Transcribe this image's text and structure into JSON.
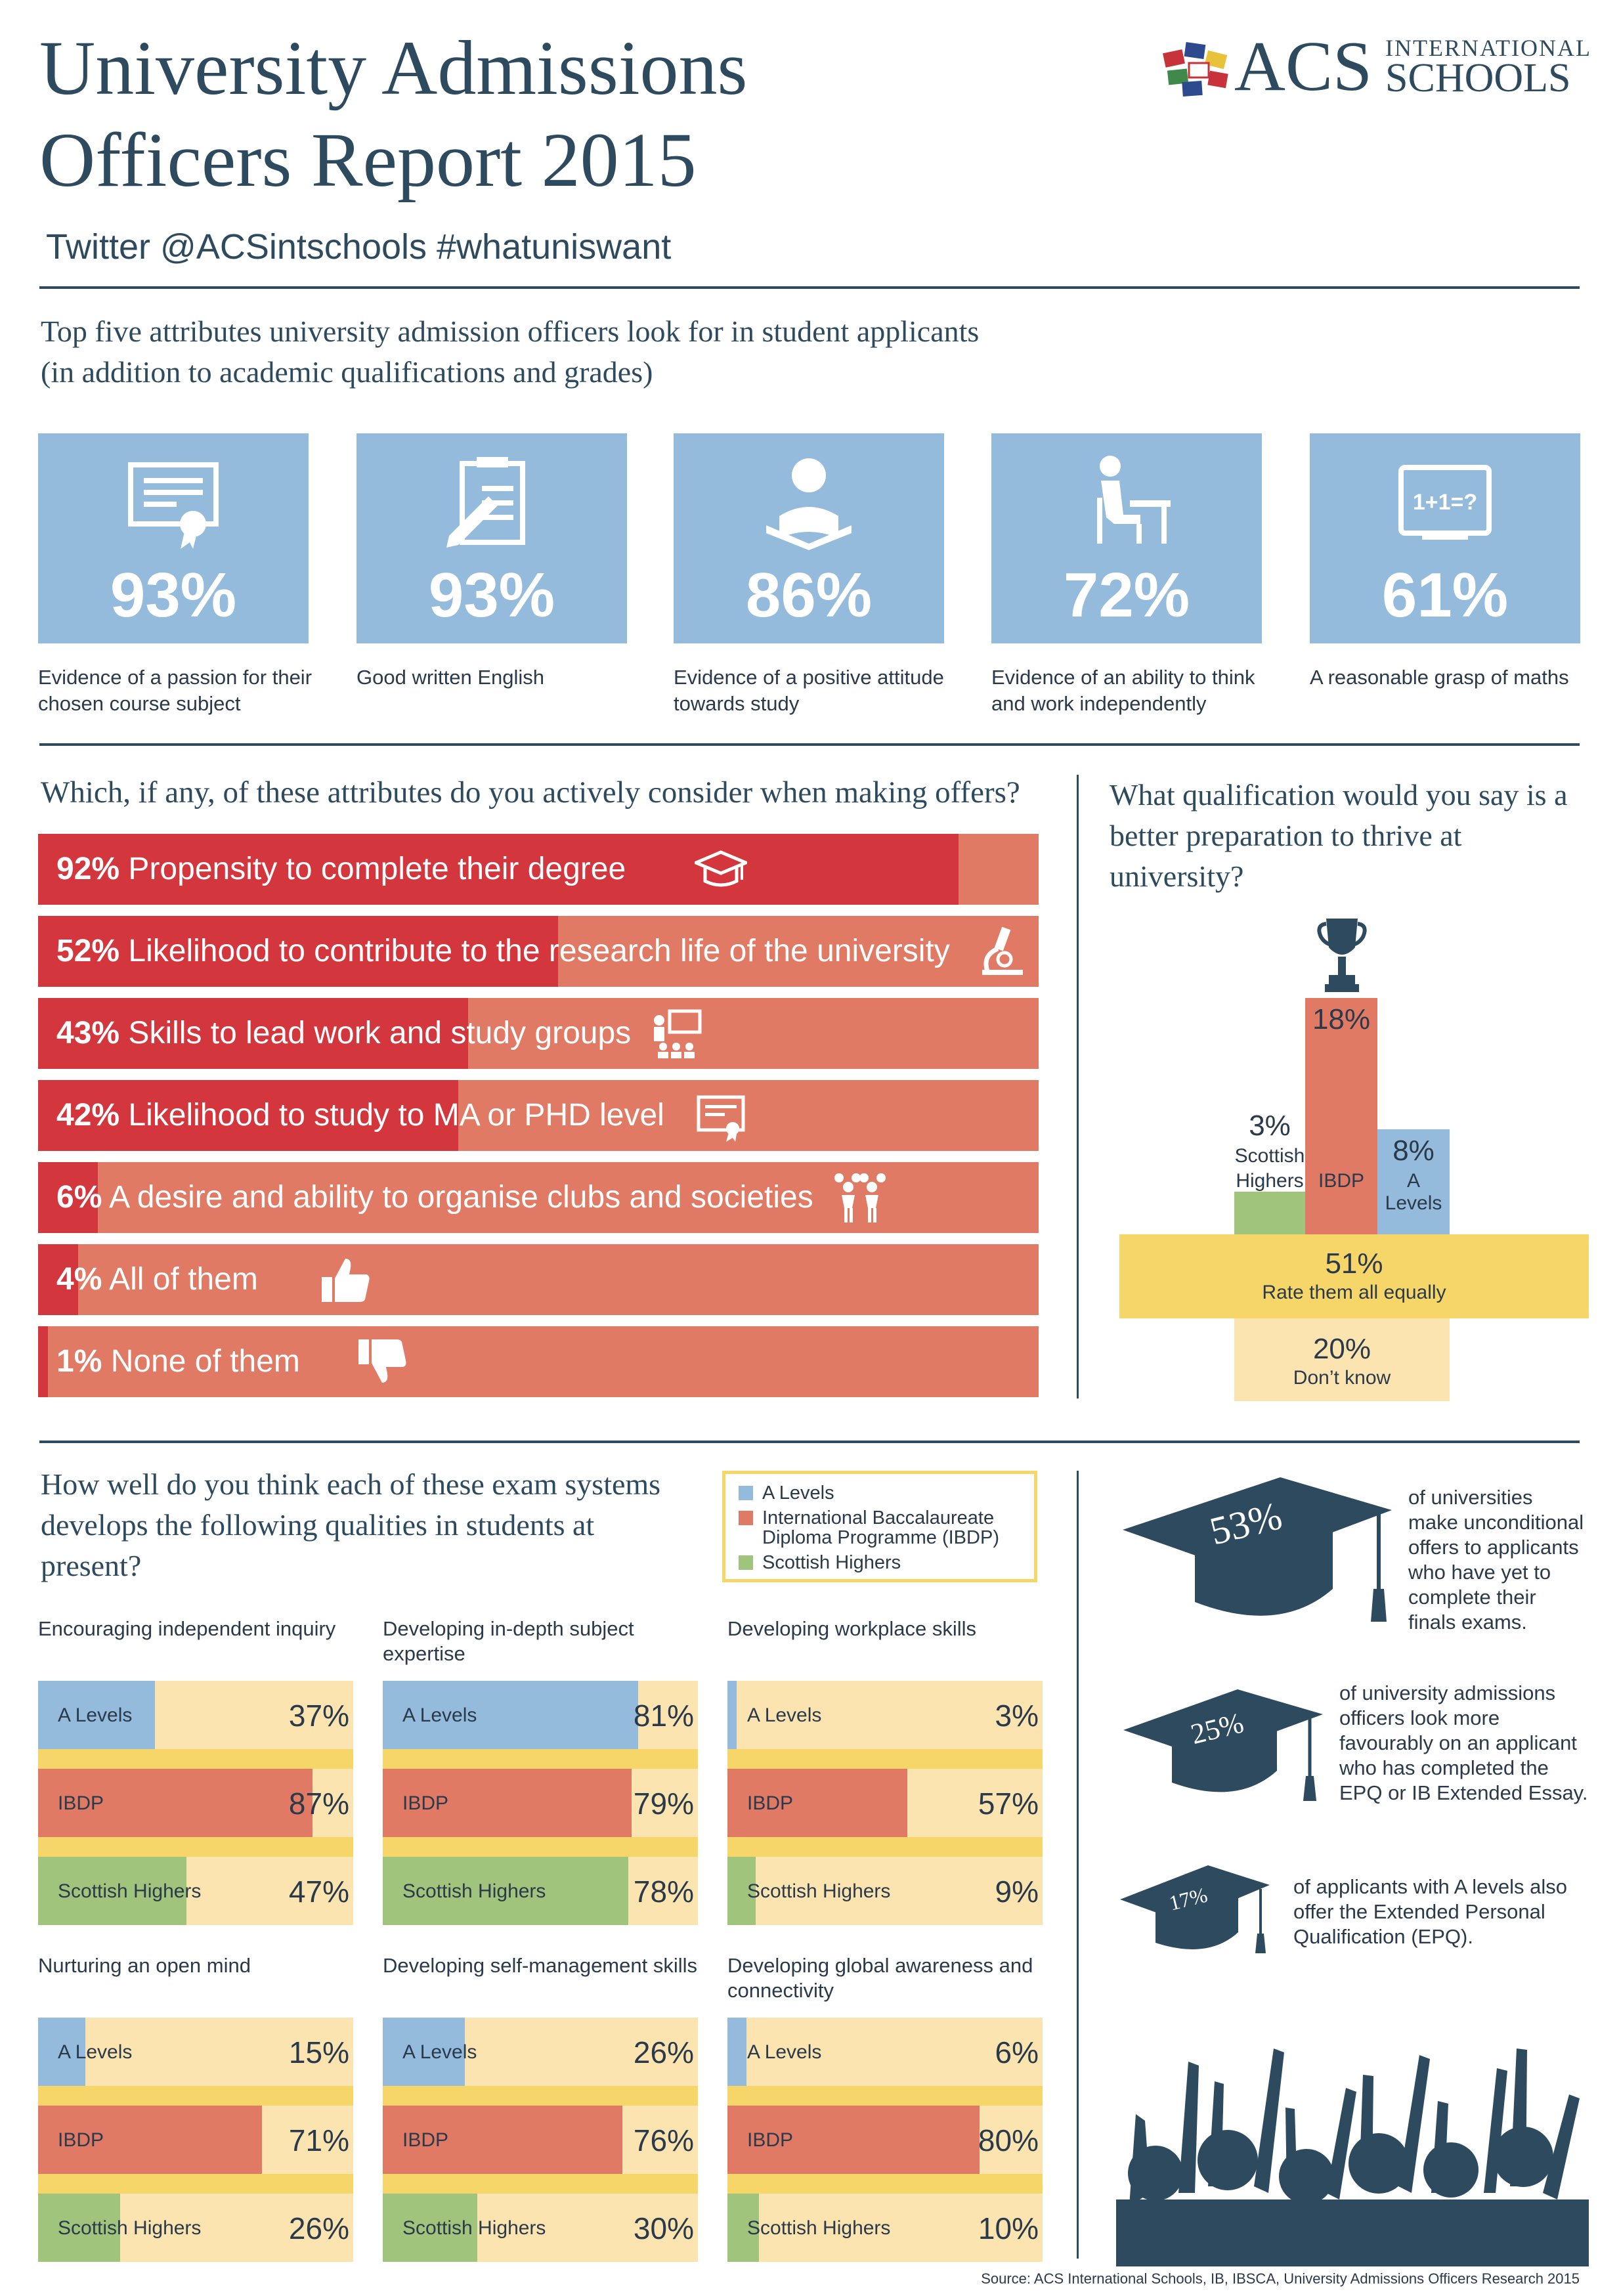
{
  "header": {
    "title_line1": "University Admissions",
    "title_line2": "Officers Report 2015",
    "twitter": "Twitter @ACSintschools  #whatuniswant",
    "logo_acs": "ACS",
    "logo_international": "INTERNATIONAL",
    "logo_schools": "SCHOOLS"
  },
  "top5": {
    "heading_line1": "Top five attributes university admission officers look for in student applicants",
    "heading_line2": "(in addition to academic qualifications and grades)",
    "items": [
      {
        "pct": "93%",
        "label": "Evidence of a passion for their chosen course subject",
        "icon": "certificate-icon"
      },
      {
        "pct": "93%",
        "label": "Good written English",
        "icon": "clipboard-pen-icon"
      },
      {
        "pct": "86%",
        "label": "Evidence of a positive attitude towards study",
        "icon": "reading-person-icon"
      },
      {
        "pct": "72%",
        "label": "Evidence of an ability to think and work independently",
        "icon": "student-desk-icon"
      },
      {
        "pct": "61%",
        "label": "A reasonable grasp of maths",
        "icon": "blackboard-icon"
      }
    ],
    "math_board_text": "1+1=?"
  },
  "attributes": {
    "question": "Which, if any, of these attributes do you actively consider when making offers?",
    "rows": [
      {
        "pct": "92%",
        "text": "Propensity to complete their degree",
        "icon": "graduation-cap-icon"
      },
      {
        "pct": "52%",
        "text": "Likelihood to contribute to the research life of the university",
        "icon": "microscope-icon"
      },
      {
        "pct": "43%",
        "text": "Skills to lead work and study groups",
        "icon": "presentation-icon"
      },
      {
        "pct": "42%",
        "text": "Likelihood to study to MA or PHD level",
        "icon": "diploma-icon"
      },
      {
        "pct": "6%",
        "text": "A desire and ability to organise clubs and societies",
        "icon": "cheerleaders-icon"
      },
      {
        "pct": "4%",
        "text": "All of them",
        "icon": "thumbs-up-icon"
      },
      {
        "pct": "1%",
        "text": "None of them",
        "icon": "thumbs-down-icon"
      }
    ]
  },
  "qualification": {
    "question": "What qualification would you say is a better preparation to thrive at university?",
    "scottish_pct": "3%",
    "scottish_label": "Scottish Highers",
    "ibdp_pct": "18%",
    "ibdp_label": "IBDP",
    "alevels_pct": "8%",
    "alevels_label": "A Levels",
    "equal_pct": "51%",
    "equal_label": "Rate them all equally",
    "dontknow_pct": "20%",
    "dontknow_label": "Don’t know"
  },
  "exam": {
    "question": "How well do you think each of these exam systems develops the following qualities in students at present?",
    "legend": [
      "A Levels",
      "International Baccalaureate Diploma Programme (IBDP)",
      "Scottish Highers"
    ],
    "row_labels": [
      "A Levels",
      "IBDP",
      "Scottish Highers"
    ],
    "panel_titles": [
      "Encouraging independent inquiry",
      "Developing in-depth subject expertise",
      "Developing workplace skills",
      "Nurturing an open mind",
      "Developing self-management skills",
      "Developing global awareness and connectivity"
    ],
    "panel_pcts": [
      [
        "37%",
        "87%",
        "47%"
      ],
      [
        "81%",
        "79%",
        "78%"
      ],
      [
        "3%",
        "57%",
        "9%"
      ],
      [
        "15%",
        "71%",
        "26%"
      ],
      [
        "26%",
        "76%",
        "30%"
      ],
      [
        "6%",
        "80%",
        "10%"
      ]
    ]
  },
  "stats": [
    {
      "pct": "53%",
      "text": "of universities make unconditional offers to applicants who have yet to complete their finals exams."
    },
    {
      "pct": "25%",
      "text": "of university admissions officers look more favourably on an applicant who has completed the EPQ or IB Extended Essay."
    },
    {
      "pct": "17%",
      "text": "of applicants with A levels also offer the Extended Personal Qualification (EPQ)."
    }
  ],
  "source": "Source: ACS International Schools, IB, IBSCA, University Admissions Officers Research 2015",
  "colors": {
    "navy": "#2e4a5f",
    "tile_blue": "#94bbdc",
    "red": "#d3363d",
    "salmon": "#e07a65",
    "yellow": "#f7d669",
    "pale_yellow": "#fbe4b0",
    "green": "#a0c47c"
  },
  "chart_data": [
    {
      "type": "bar",
      "title": "Top five attributes university admission officers look for in student applicants",
      "categories": [
        "Evidence of a passion for their chosen course subject",
        "Good written English",
        "Evidence of a positive attitude towards study",
        "Evidence of an ability to think and work independently",
        "A reasonable grasp of maths"
      ],
      "values": [
        93,
        93,
        86,
        72,
        61
      ]
    },
    {
      "type": "bar",
      "title": "Which, if any, of these attributes do you actively consider when making offers?",
      "categories": [
        "Propensity to complete their degree",
        "Likelihood to contribute to the research life of the university",
        "Skills to lead work and study groups",
        "Likelihood to study to MA or PHD level",
        "A desire and ability to organise clubs and societies",
        "All of them",
        "None of them"
      ],
      "values": [
        92,
        52,
        43,
        42,
        6,
        4,
        1
      ],
      "xlim": [
        0,
        100
      ]
    },
    {
      "type": "bar",
      "title": "What qualification would you say is a better preparation to thrive at university?",
      "categories": [
        "Scottish Highers",
        "IBDP",
        "A Levels",
        "Rate them all equally",
        "Don’t know"
      ],
      "values": [
        3,
        18,
        8,
        51,
        20
      ]
    },
    {
      "type": "bar",
      "title": "How well do you think each of these exam systems develops the following qualities in students at present?",
      "categories": [
        "Encouraging independent inquiry",
        "Developing in-depth subject expertise",
        "Developing workplace skills",
        "Nurturing an open mind",
        "Developing self-management skills",
        "Developing global awareness and connectivity"
      ],
      "series": [
        {
          "name": "A Levels",
          "values": [
            37,
            81,
            3,
            15,
            26,
            6
          ]
        },
        {
          "name": "IBDP",
          "values": [
            87,
            79,
            57,
            71,
            76,
            80
          ]
        },
        {
          "name": "Scottish Highers",
          "values": [
            47,
            78,
            9,
            26,
            30,
            10
          ]
        }
      ],
      "xlim": [
        0,
        100
      ]
    },
    {
      "type": "bar",
      "categories": [
        "of universities make unconditional offers to applicants who have yet to complete their finals exams.",
        "of university admissions officers look more favourably on an applicant who has completed the EPQ or IB Extended Essay.",
        "of applicants with A levels also offer the Extended Personal Qualification (EPQ)."
      ],
      "values": [
        53,
        25,
        17
      ]
    }
  ]
}
